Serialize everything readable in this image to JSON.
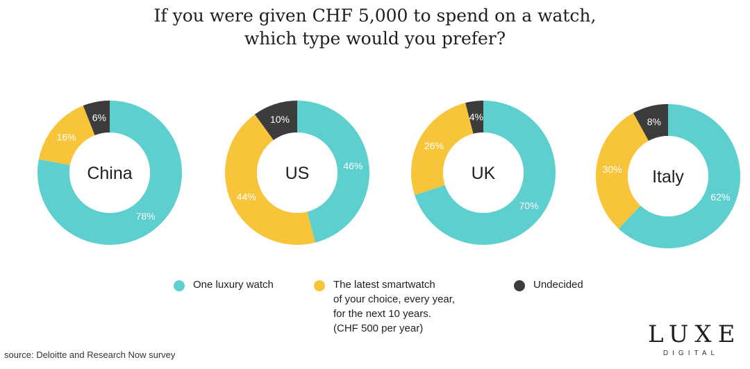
{
  "colors": {
    "luxury": "#5ECFCF",
    "smartwatch": "#F8C43A",
    "undecided": "#3C3C3C"
  },
  "chart_data": {
    "type": "pie",
    "title_lines": [
      "If you were given CHF 5,000 to spend on a watch,",
      "which type would you prefer?"
    ],
    "series_names": [
      "One luxury watch",
      "The latest smartwatch of your choice, every year, for the next 10 years. (CHF 500 per year)",
      "Undecided"
    ],
    "charts": [
      {
        "label": "China",
        "values": [
          78,
          16,
          6
        ],
        "labels": [
          "78%",
          "16%",
          "6%"
        ]
      },
      {
        "label": "US",
        "values": [
          46,
          44,
          10
        ],
        "labels": [
          "46%",
          "44%",
          "10%"
        ]
      },
      {
        "label": "UK",
        "values": [
          70,
          26,
          4
        ],
        "labels": [
          "70%",
          "26%",
          "4%"
        ]
      },
      {
        "label": "Italy",
        "values": [
          62,
          30,
          8
        ],
        "labels": [
          "62%",
          "30%",
          "8%"
        ]
      }
    ]
  },
  "legend": {
    "luxury": "One luxury watch",
    "smartwatch_lines": [
      "The latest smartwatch",
      "of your choice, every year,",
      "for the next 10 years.",
      "(CHF 500 per year)"
    ],
    "undecided": "Undecided"
  },
  "source": "source: Deloitte and Research Now survey",
  "logo": {
    "main": "LUXE",
    "sub": "DIGITAL"
  }
}
